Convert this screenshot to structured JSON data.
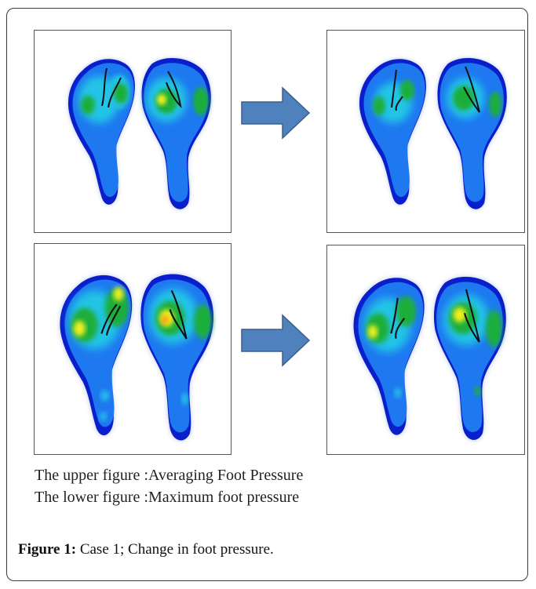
{
  "captions": {
    "upper": "The upper figure :Averaging Foot Pressure",
    "lower": "The lower figure :Maximum foot pressure"
  },
  "figure": {
    "label": "Figure 1:",
    "text": " Case 1; Change in foot pressure."
  },
  "panels": {
    "top_left": "averaging-foot-pressure-before",
    "top_right": "averaging-foot-pressure-after",
    "bottom_left": "maximum-foot-pressure-before",
    "bottom_right": "maximum-foot-pressure-after"
  },
  "colors": {
    "arrow_fill": "#4f81bd",
    "arrow_stroke": "#3a5f8f",
    "heat_outer": "#0000c8",
    "heat_mid": "#1e90ff",
    "heat_cyan": "#22c4e6",
    "heat_green": "#1fae3a",
    "heat_yellow": "#f2f01c",
    "heat_orange": "#ff8a1c"
  }
}
